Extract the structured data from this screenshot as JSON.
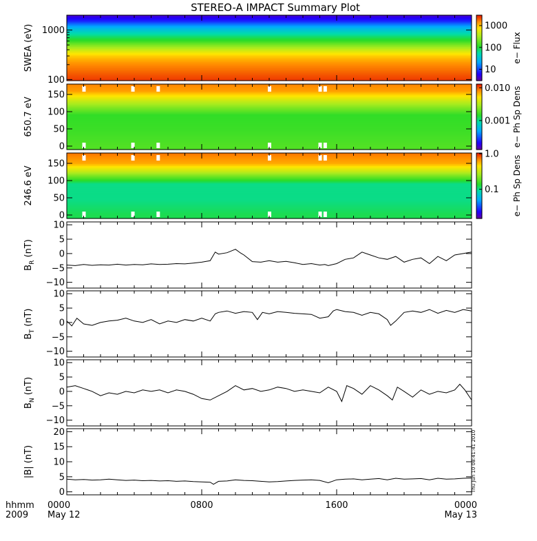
{
  "title": "STEREO-A IMPACT Summary Plot",
  "stamp": "Thu Jun 10 08:41:41 2010",
  "time_axis": {
    "row_label_1": "hhmm",
    "row_label_2": "2009",
    "ticks": [
      {
        "hour": 0,
        "line1": "0000",
        "line2": "May 12"
      },
      {
        "hour": 8,
        "line1": "0800",
        "line2": ""
      },
      {
        "hour": 16,
        "line1": "1600",
        "line2": ""
      },
      {
        "hour": 24,
        "line1": "0000",
        "line2": "May 13"
      }
    ],
    "range_hours": [
      0,
      24
    ]
  },
  "colorbars": [
    {
      "id": "swea",
      "label": "e− Flux",
      "tick_labels": [
        "1000",
        "100",
        "10"
      ],
      "tick_values": [
        1000,
        100,
        10
      ],
      "range": [
        3,
        3000
      ],
      "scale": "log"
    },
    {
      "id": "p650",
      "label": "e− Ph Sp Dens",
      "tick_labels": [
        "0.010",
        "0.001"
      ],
      "tick_values": [
        0.01,
        0.001
      ],
      "range": [
        0.00013,
        0.013
      ],
      "scale": "log"
    },
    {
      "id": "p246",
      "label": "e− Ph Sp Dens",
      "tick_labels": [
        "1.0",
        "0.1"
      ],
      "tick_values": [
        1.0,
        0.1
      ],
      "range": [
        0.015,
        1.05
      ],
      "scale": "log"
    }
  ],
  "chart_data": [
    {
      "type": "heatmap",
      "id": "swea",
      "ylabel": "SWEA (eV)",
      "yscale": "log",
      "ylim": [
        95,
        2000
      ],
      "yticks": [
        100,
        1000
      ],
      "ytick_labels": [
        "100",
        "1000"
      ],
      "energy_profile": [
        {
          "energy": 95,
          "flux": 2400
        },
        {
          "energy": 150,
          "flux": 1800
        },
        {
          "energy": 200,
          "flux": 1500
        },
        {
          "energy": 300,
          "flux": 900
        },
        {
          "energy": 450,
          "flux": 300
        },
        {
          "energy": 600,
          "flux": 120
        },
        {
          "energy": 800,
          "flux": 60
        },
        {
          "energy": 1100,
          "flux": 25
        },
        {
          "energy": 1500,
          "flux": 8
        },
        {
          "energy": 2000,
          "flux": 4
        }
      ]
    },
    {
      "type": "heatmap",
      "id": "p650",
      "ylabel": "650.7 eV",
      "ylim": [
        -10,
        180
      ],
      "yticks": [
        0,
        50,
        100,
        150
      ],
      "ytick_labels": [
        "0",
        "50",
        "100",
        "150"
      ],
      "pitch_profile": [
        {
          "pitch": 0,
          "value": 0.0018
        },
        {
          "pitch": 45,
          "value": 0.0016
        },
        {
          "pitch": 90,
          "value": 0.0015
        },
        {
          "pitch": 130,
          "value": 0.0035
        },
        {
          "pitch": 160,
          "value": 0.0075
        },
        {
          "pitch": 180,
          "value": 0.0085
        }
      ],
      "gaps_hours": [
        1.0,
        3.9,
        5.4,
        12.0,
        15.0,
        15.3
      ]
    },
    {
      "type": "heatmap",
      "id": "p246",
      "ylabel": "246.6 eV",
      "ylim": [
        -10,
        180
      ],
      "yticks": [
        0,
        50,
        100,
        150
      ],
      "ytick_labels": [
        "0",
        "50",
        "100",
        "150"
      ],
      "pitch_profile": [
        {
          "pitch": 0,
          "value": 0.12
        },
        {
          "pitch": 45,
          "value": 0.1
        },
        {
          "pitch": 90,
          "value": 0.1
        },
        {
          "pitch": 125,
          "value": 0.3
        },
        {
          "pitch": 150,
          "value": 0.6
        },
        {
          "pitch": 180,
          "value": 0.75
        }
      ],
      "gaps_hours": [
        1.0,
        3.9,
        5.4,
        12.0,
        15.0,
        15.3
      ]
    },
    {
      "type": "line",
      "id": "br",
      "ylabel_main": "B",
      "ylabel_sub": "R",
      "ylabel_unit": " (nT)",
      "ylim": [
        -12,
        11
      ],
      "yticks": [
        -10,
        -5,
        0,
        5,
        10
      ],
      "ytick_labels": [
        "−10",
        "−5",
        "0",
        "5",
        "10"
      ],
      "series": [
        {
          "x": [
            0,
            0.5,
            1,
            1.5,
            2,
            2.5,
            3,
            3.5,
            4,
            4.5,
            5,
            5.5,
            6,
            6.5,
            7,
            7.5,
            8,
            8.5,
            8.8,
            9,
            9.5,
            10,
            10.3,
            10.5,
            11,
            11.5,
            12,
            12.5,
            13,
            13.5,
            14,
            14.5,
            15,
            15.3,
            15.5,
            16,
            16.5,
            17,
            17.5,
            18,
            18.5,
            19,
            19.5,
            20,
            20.5,
            21,
            21.5,
            22,
            22.5,
            23,
            23.5,
            24
          ],
          "y": [
            -4,
            -4.2,
            -3.8,
            -4.1,
            -3.9,
            -4,
            -3.7,
            -4,
            -3.8,
            -3.9,
            -3.6,
            -3.8,
            -3.7,
            -3.5,
            -3.6,
            -3.3,
            -3,
            -2.5,
            0.5,
            -0.2,
            0.3,
            1.5,
            0.2,
            -0.5,
            -2.8,
            -3,
            -2.5,
            -3,
            -2.7,
            -3.2,
            -3.8,
            -3.5,
            -4,
            -3.8,
            -4.2,
            -3.5,
            -2,
            -1.5,
            0.5,
            -0.5,
            -1.5,
            -2,
            -1,
            -3,
            -2,
            -1.5,
            -3.5,
            -1,
            -2.5,
            -0.5,
            0,
            0.5
          ]
        }
      ]
    },
    {
      "type": "line",
      "id": "bt",
      "ylabel_main": "B",
      "ylabel_sub": "T",
      "ylabel_unit": " (nT)",
      "ylim": [
        -12,
        11
      ],
      "yticks": [
        -10,
        -5,
        0,
        5,
        10
      ],
      "ytick_labels": [
        "−10",
        "−5",
        "0",
        "5",
        "10"
      ],
      "series": [
        {
          "x": [
            0,
            0.3,
            0.6,
            1,
            1.5,
            2,
            2.5,
            3,
            3.5,
            4,
            4.5,
            5,
            5.5,
            6,
            6.5,
            7,
            7.5,
            8,
            8.5,
            8.8,
            9,
            9.5,
            10,
            10.5,
            11,
            11.3,
            11.6,
            12,
            12.5,
            13,
            13.5,
            14,
            14.5,
            15,
            15.5,
            15.8,
            16,
            16.5,
            17,
            17.5,
            18,
            18.5,
            19,
            19.2,
            19.5,
            20,
            20.5,
            21,
            21.5,
            22,
            22.5,
            23,
            23.5,
            24
          ],
          "y": [
            0.5,
            -1.2,
            1.5,
            -0.5,
            -1,
            0,
            0.5,
            0.8,
            1.5,
            0.5,
            0,
            1,
            -0.5,
            0.5,
            0,
            1,
            0.5,
            1.5,
            0.5,
            3,
            3.5,
            4,
            3.2,
            3.8,
            3.5,
            1,
            3.5,
            3,
            3.8,
            3.5,
            3.2,
            3,
            2.8,
            1.5,
            2,
            4,
            4.5,
            3.8,
            3.5,
            2.5,
            3.5,
            3,
            1,
            -1,
            0.5,
            3.5,
            4,
            3.5,
            4.5,
            3.2,
            4.2,
            3.5,
            4.5,
            4
          ]
        }
      ]
    },
    {
      "type": "line",
      "id": "bn",
      "ylabel_main": "B",
      "ylabel_sub": "N",
      "ylabel_unit": " (nT)",
      "ylim": [
        -12,
        11
      ],
      "yticks": [
        -10,
        -5,
        0,
        5,
        10
      ],
      "ytick_labels": [
        "−10",
        "−5",
        "0",
        "5",
        "10"
      ],
      "series": [
        {
          "x": [
            0,
            0.5,
            1,
            1.5,
            2,
            2.5,
            3,
            3.5,
            4,
            4.5,
            5,
            5.5,
            6,
            6.5,
            7,
            7.5,
            8,
            8.5,
            9,
            9.5,
            10,
            10.5,
            11,
            11.5,
            12,
            12.5,
            13,
            13.5,
            14,
            14.5,
            15,
            15.5,
            16,
            16.3,
            16.6,
            17,
            17.5,
            18,
            18.5,
            19,
            19.3,
            19.6,
            20,
            20.5,
            21,
            21.5,
            22,
            22.5,
            23,
            23.3,
            23.6,
            24
          ],
          "y": [
            1.5,
            2,
            1,
            0,
            -1.5,
            -0.5,
            -1,
            0,
            -0.5,
            0.5,
            0,
            0.5,
            -0.5,
            0.5,
            0,
            -1,
            -2.5,
            -3,
            -1.5,
            0,
            2,
            0.5,
            1,
            0,
            0.5,
            1.5,
            1,
            0,
            0.5,
            0,
            -0.5,
            1.5,
            0,
            -3.5,
            2,
            1,
            -1,
            2,
            0.5,
            -1.5,
            -3,
            1.5,
            0,
            -2,
            0.5,
            -1,
            0,
            -0.5,
            0.5,
            2.5,
            0.5,
            -3
          ]
        }
      ]
    },
    {
      "type": "line",
      "id": "bmag",
      "ylabel_main": "|B| (nT)",
      "ylim": [
        -1,
        21
      ],
      "yticks": [
        0,
        5,
        10,
        15,
        20
      ],
      "ytick_labels": [
        "0",
        "5",
        "10",
        "15",
        "20"
      ],
      "series": [
        {
          "x": [
            0,
            0.5,
            1,
            1.5,
            2,
            2.5,
            3,
            3.5,
            4,
            4.5,
            5,
            5.5,
            6,
            6.5,
            7,
            7.5,
            8,
            8.5,
            8.7,
            9,
            9.5,
            10,
            10.5,
            11,
            11.5,
            12,
            12.5,
            13,
            13.5,
            14,
            14.5,
            15,
            15.5,
            16,
            16.5,
            17,
            17.5,
            18,
            18.5,
            19,
            19.5,
            20,
            20.5,
            21,
            21.5,
            22,
            22.5,
            23,
            23.5,
            24
          ],
          "y": [
            4.2,
            4,
            4.1,
            3.9,
            4,
            4.2,
            4,
            3.8,
            3.9,
            3.7,
            3.8,
            3.6,
            3.7,
            3.5,
            3.6,
            3.4,
            3.3,
            3.2,
            2.5,
            3.5,
            3.6,
            4,
            3.8,
            3.7,
            3.5,
            3.3,
            3.4,
            3.6,
            3.8,
            3.9,
            4,
            3.8,
            3,
            4,
            4.2,
            4.3,
            4,
            4.2,
            4.4,
            4,
            4.5,
            4.2,
            4.3,
            4.4,
            4,
            4.5,
            4.2,
            4.3,
            4.5,
            4.6
          ]
        }
      ]
    }
  ]
}
